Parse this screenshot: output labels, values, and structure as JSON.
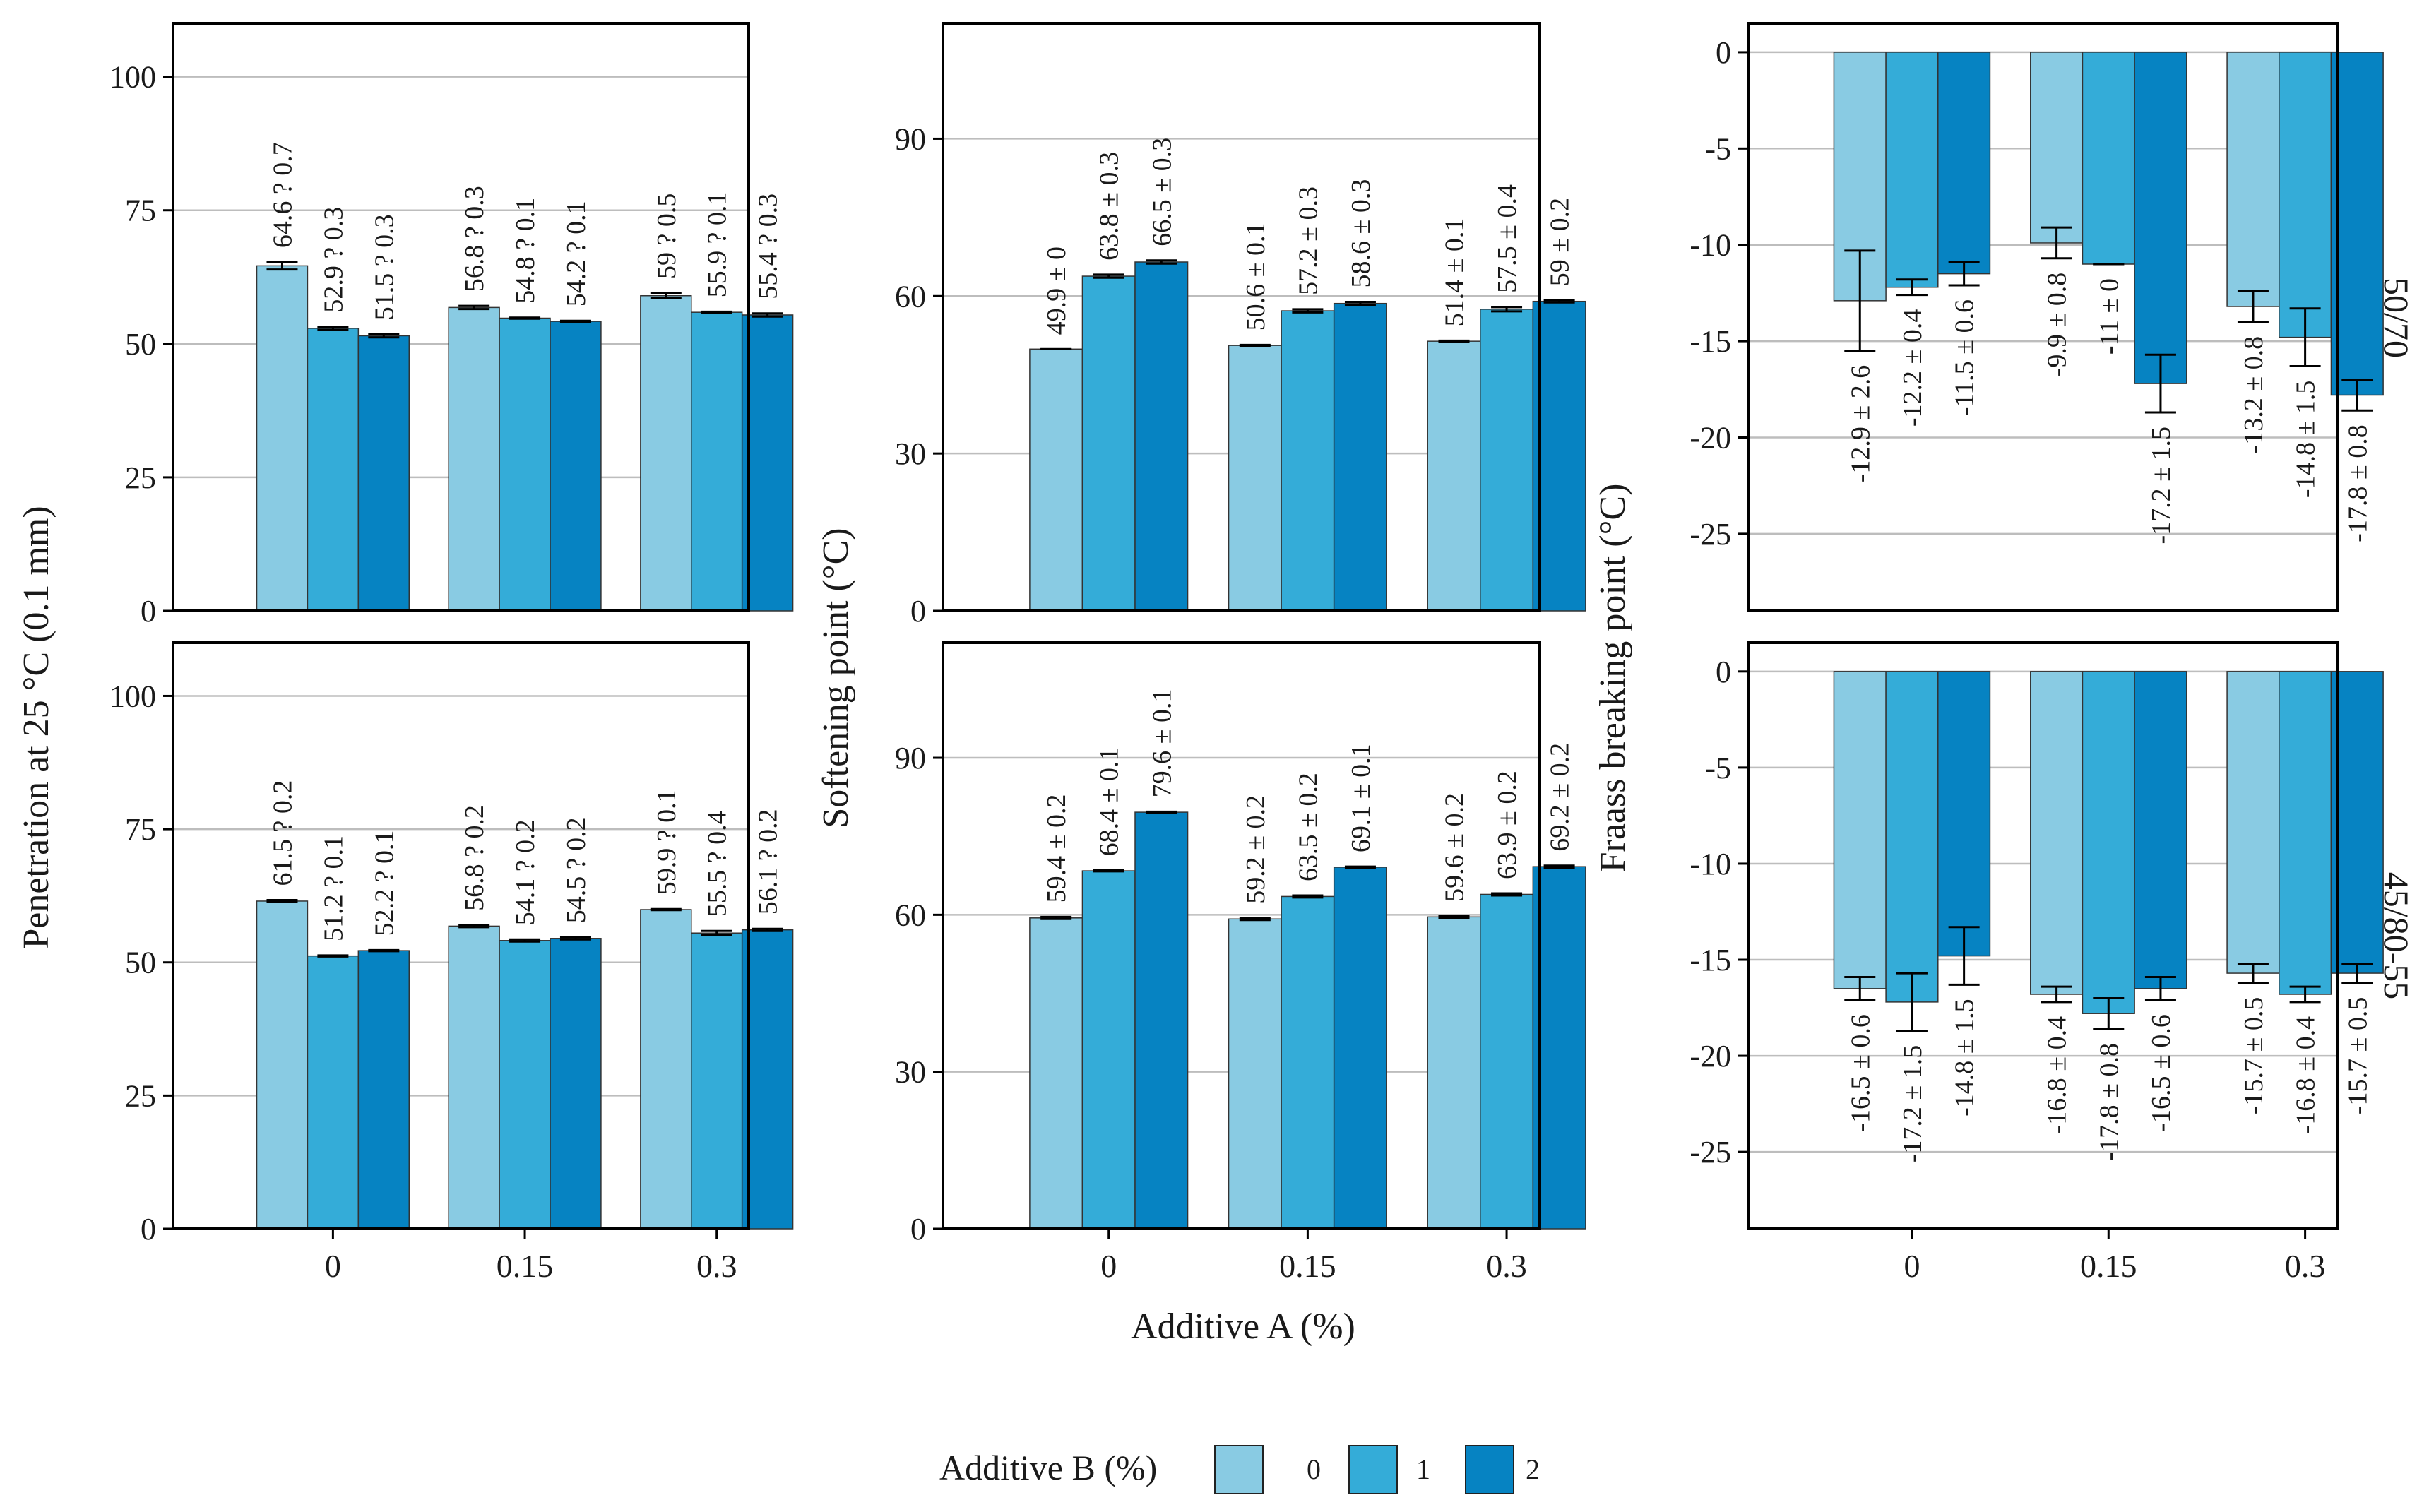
{
  "colors": {
    "b0": "#89cbe3",
    "b1": "#34acd8",
    "b2": "#0683c2",
    "grid": "#bdbdbd",
    "frame": "#000000"
  },
  "x_axis": {
    "title": "Additive A (%)",
    "tick_labels": [
      "0",
      "0.15",
      "0.3"
    ]
  },
  "legend": {
    "title": "Additive B (%)",
    "items": [
      "0",
      "1",
      "2"
    ]
  },
  "row_strips": [
    "50/70",
    "45/80-55"
  ],
  "y_titles": [
    "Penetration at 25 °C (0.1 mm)",
    "Softening point (°C)",
    "Fraass breaking point (°C)"
  ],
  "chart_data": [
    {
      "type": "bar",
      "id": "penetration-5070",
      "binder": "50/70",
      "ylabel": "Penetration at 25 °C (0.1 mm)",
      "ylim": [
        0,
        110
      ],
      "yticks": [
        0,
        25,
        50,
        75,
        100
      ],
      "ytick_labels": [
        "0",
        "25",
        "50",
        "75",
        "100"
      ],
      "categories": [
        "0",
        "0.15",
        "0.3"
      ],
      "series": [
        {
          "name": "0",
          "values": [
            64.6,
            56.8,
            59.0
          ],
          "errors": [
            0.7,
            0.3,
            0.5
          ],
          "labels": [
            "64.6 ? 0.7",
            "56.8 ? 0.3",
            "59 ? 0.5"
          ]
        },
        {
          "name": "1",
          "values": [
            52.9,
            54.8,
            55.9
          ],
          "errors": [
            0.3,
            0.1,
            0.1
          ],
          "labels": [
            "52.9 ? 0.3",
            "54.8 ? 0.1",
            "55.9 ? 0.1"
          ]
        },
        {
          "name": "2",
          "values": [
            51.5,
            54.2,
            55.4
          ],
          "errors": [
            0.3,
            0.1,
            0.3
          ],
          "labels": [
            "51.5 ? 0.3",
            "54.2 ? 0.1",
            "55.4 ? 0.3"
          ]
        }
      ]
    },
    {
      "type": "bar",
      "id": "softening-5070",
      "binder": "50/70",
      "ylabel": "Softening point (°C)",
      "ylim": [
        0,
        112
      ],
      "yticks": [
        0,
        30,
        60,
        90
      ],
      "ytick_labels": [
        "0",
        "30",
        "60",
        "90"
      ],
      "categories": [
        "0",
        "0.15",
        "0.3"
      ],
      "series": [
        {
          "name": "0",
          "values": [
            49.9,
            50.6,
            51.4
          ],
          "errors": [
            0.0,
            0.1,
            0.1
          ],
          "labels": [
            "49.9 ± 0",
            "50.6 ± 0.1",
            "51.4 ± 0.1"
          ]
        },
        {
          "name": "1",
          "values": [
            63.8,
            57.2,
            57.5
          ],
          "errors": [
            0.3,
            0.3,
            0.4
          ],
          "labels": [
            "63.8 ± 0.3",
            "57.2 ± 0.3",
            "57.5 ± 0.4"
          ]
        },
        {
          "name": "2",
          "values": [
            66.5,
            58.6,
            59.0
          ],
          "errors": [
            0.3,
            0.3,
            0.2
          ],
          "labels": [
            "66.5 ± 0.3",
            "58.6 ± 0.3",
            "59 ± 0.2"
          ]
        }
      ]
    },
    {
      "type": "bar",
      "id": "fraass-5070",
      "binder": "50/70",
      "ylabel": "Fraass breaking point (°C)",
      "ylim": [
        -29,
        1.5
      ],
      "yticks": [
        0,
        -5,
        -10,
        -15,
        -20,
        -25
      ],
      "ytick_labels": [
        "0",
        "-5",
        "-10",
        "-15",
        "-20",
        "-25"
      ],
      "categories": [
        "0",
        "0.15",
        "0.3"
      ],
      "series": [
        {
          "name": "0",
          "values": [
            -12.9,
            -9.9,
            -13.2
          ],
          "errors": [
            2.6,
            0.8,
            0.8
          ],
          "labels": [
            "-12.9 ± 2.6",
            "-9.9 ± 0.8",
            "-13.2 ± 0.8"
          ]
        },
        {
          "name": "1",
          "values": [
            -12.2,
            -11.0,
            -14.8
          ],
          "errors": [
            0.4,
            0.0,
            1.5
          ],
          "labels": [
            "-12.2 ± 0.4",
            "-11 ± 0",
            "-14.8 ± 1.5"
          ]
        },
        {
          "name": "2",
          "values": [
            -11.5,
            -17.2,
            -17.8
          ],
          "errors": [
            0.6,
            1.5,
            0.8
          ],
          "labels": [
            "-11.5 ± 0.6",
            "-17.2 ± 1.5",
            "-17.8 ± 0.8"
          ]
        }
      ]
    },
    {
      "type": "bar",
      "id": "penetration-4580",
      "binder": "45/80-55",
      "ylabel": "Penetration at 25 °C (0.1 mm)",
      "ylim": [
        0,
        110
      ],
      "yticks": [
        0,
        25,
        50,
        75,
        100
      ],
      "ytick_labels": [
        "0",
        "25",
        "50",
        "75",
        "100"
      ],
      "categories": [
        "0",
        "0.15",
        "0.3"
      ],
      "series": [
        {
          "name": "0",
          "values": [
            61.5,
            56.8,
            59.9
          ],
          "errors": [
            0.2,
            0.2,
            0.1
          ],
          "labels": [
            "61.5 ? 0.2",
            "56.8 ? 0.2",
            "59.9 ? 0.1"
          ]
        },
        {
          "name": "1",
          "values": [
            51.2,
            54.1,
            55.5
          ],
          "errors": [
            0.1,
            0.2,
            0.4
          ],
          "labels": [
            "51.2 ? 0.1",
            "54.1 ? 0.2",
            "55.5 ? 0.4"
          ]
        },
        {
          "name": "2",
          "values": [
            52.2,
            54.5,
            56.1
          ],
          "errors": [
            0.1,
            0.2,
            0.2
          ],
          "labels": [
            "52.2 ? 0.1",
            "54.5 ? 0.2",
            "56.1 ? 0.2"
          ]
        }
      ]
    },
    {
      "type": "bar",
      "id": "softening-4580",
      "binder": "45/80-55",
      "ylabel": "Softening point (°C)",
      "ylim": [
        0,
        112
      ],
      "yticks": [
        0,
        30,
        60,
        90
      ],
      "ytick_labels": [
        "0",
        "30",
        "60",
        "90"
      ],
      "categories": [
        "0",
        "0.15",
        "0.3"
      ],
      "series": [
        {
          "name": "0",
          "values": [
            59.4,
            59.2,
            59.6
          ],
          "errors": [
            0.2,
            0.2,
            0.2
          ],
          "labels": [
            "59.4 ± 0.2",
            "59.2 ± 0.2",
            "59.6 ± 0.2"
          ]
        },
        {
          "name": "1",
          "values": [
            68.4,
            63.5,
            63.9
          ],
          "errors": [
            0.1,
            0.2,
            0.2
          ],
          "labels": [
            "68.4 ± 0.1",
            "63.5 ± 0.2",
            "63.9 ± 0.2"
          ]
        },
        {
          "name": "2",
          "values": [
            79.6,
            69.1,
            69.2
          ],
          "errors": [
            0.1,
            0.1,
            0.2
          ],
          "labels": [
            "79.6 ± 0.1",
            "69.1 ± 0.1",
            "69.2 ± 0.2"
          ]
        }
      ]
    },
    {
      "type": "bar",
      "id": "fraass-4580",
      "binder": "45/80-55",
      "ylabel": "Fraass breaking point (°C)",
      "ylim": [
        -29,
        1.5
      ],
      "yticks": [
        0,
        -5,
        -10,
        -15,
        -20,
        -25
      ],
      "ytick_labels": [
        "0",
        "-5",
        "-10",
        "-15",
        "-20",
        "-25"
      ],
      "categories": [
        "0",
        "0.15",
        "0.3"
      ],
      "series": [
        {
          "name": "0",
          "values": [
            -16.5,
            -16.8,
            -15.7
          ],
          "errors": [
            0.6,
            0.4,
            0.5
          ],
          "labels": [
            "-16.5 ± 0.6",
            "-16.8 ± 0.4",
            "-15.7 ± 0.5"
          ]
        },
        {
          "name": "1",
          "values": [
            -17.2,
            -17.8,
            -16.8
          ],
          "errors": [
            1.5,
            0.8,
            0.4
          ],
          "labels": [
            "-17.2 ± 1.5",
            "-17.8 ± 0.8",
            "-16.8 ± 0.4"
          ]
        },
        {
          "name": "2",
          "values": [
            -14.8,
            -16.5,
            -15.7
          ],
          "errors": [
            1.5,
            0.6,
            0.5
          ],
          "labels": [
            "-14.8 ± 1.5",
            "-16.5 ± 0.6",
            "-15.7 ± 0.5"
          ]
        }
      ]
    }
  ]
}
